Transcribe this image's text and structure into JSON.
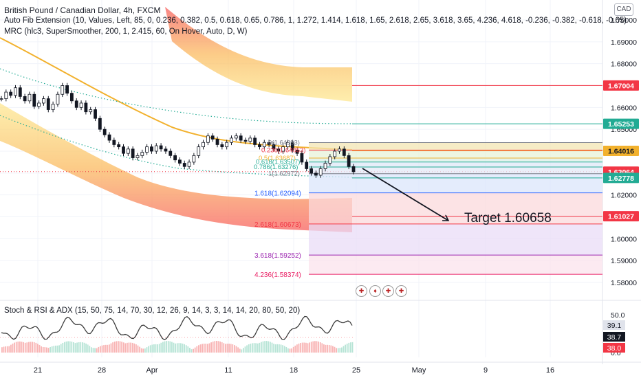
{
  "legend": {
    "title": "British Pound / Canadian Dollar, 4h, FXCM",
    "fib": "Auto Fib Extension (10, Values, Left, 85, 0, 0.236, 0.382, 0.5, 0.618, 0.65, 0.786, 1, 1.272, 1.414, 1.618, 1.65, 2.618, 2.65, 3.618, 3.65, 4.236, 4.618, -0.236, -0.382, -0.618, -0.65)",
    "mrc": "MRC (hlc3, SuperSmoother, 200, 1, 2.415, 60, On Hover, Auto, D, W)",
    "osc": "Stoch & RSI & ADX (15, 50, 75, 14, 70, 30, 12, 26, 9, 14, 3, 3, 14, 14, 20, 80, 50, 20)"
  },
  "currency": "CAD",
  "annotation": "Target 1.60658",
  "colors": {
    "upper_band": "#f9c56a",
    "lower_band": "#f7a07a",
    "mean_line": "#f2b12d",
    "arrow": "#131722",
    "stoch_line": "#3c3c3c"
  },
  "chart_data": {
    "type": "line",
    "title": "British Pound / Canadian Dollar, 4h, FXCM",
    "x_ticks": [
      "21",
      "28",
      "Apr",
      "11",
      "18",
      "25",
      "May",
      "9",
      "16"
    ],
    "y_ticks": [
      "1.70000",
      "1.69000",
      "1.68000",
      "1.67000",
      "1.66000",
      "1.65000",
      "1.64000",
      "1.63000",
      "1.62000",
      "1.61000",
      "1.60000",
      "1.59000",
      "1.58000"
    ],
    "ylim": [
      1.577,
      1.705
    ],
    "osc_ticks": [
      "50.0",
      "0.0"
    ],
    "close_series": [
      1.664,
      1.667,
      1.6655,
      1.669,
      1.665,
      1.663,
      1.666,
      1.6605,
      1.662,
      1.664,
      1.659,
      1.6615,
      1.666,
      1.67,
      1.6665,
      1.663,
      1.66,
      1.662,
      1.658,
      1.659,
      1.655,
      1.65,
      1.6475,
      1.645,
      1.643,
      1.642,
      1.639,
      1.641,
      1.637,
      1.638,
      1.6395,
      1.642,
      1.64,
      1.6425,
      1.641,
      1.64,
      1.638,
      1.636,
      1.6345,
      1.633,
      1.635,
      1.638,
      1.642,
      1.644,
      1.647,
      1.6455,
      1.643,
      1.642,
      1.644,
      1.646,
      1.647,
      1.645,
      1.6445,
      1.646,
      1.643,
      1.642,
      1.644,
      1.643,
      1.641,
      1.64,
      1.642,
      1.644,
      1.6405,
      1.639,
      1.635,
      1.632,
      1.63,
      1.629,
      1.632,
      1.6345,
      1.6375,
      1.64,
      1.641,
      1.638,
      1.633,
      1.6306
    ],
    "fib_levels": [
      {
        "label": "0(1.64393)",
        "value": 1.64393
      },
      {
        "label": "0.236(1.64053)",
        "value": 1.64053
      },
      {
        "label": "0.5(1.63687)",
        "value": 1.63687
      },
      {
        "label": "0.618(1.63507)",
        "value": 1.63507
      },
      {
        "label": "0.786(1.63276)",
        "value": 1.63276
      },
      {
        "label": "1(1.62972)",
        "value": 1.62972
      },
      {
        "label": "1.618(1.62094)",
        "value": 1.62094
      },
      {
        "label": "2.618(1.60673)",
        "value": 1.60673
      },
      {
        "label": "3.618(1.59252)",
        "value": 1.59252
      },
      {
        "label": "4.236(1.58374)",
        "value": 1.58374
      }
    ],
    "price_labels": [
      {
        "text": "1.67004",
        "value": 1.67004,
        "color": "#f23645"
      },
      {
        "text": "1.65253",
        "value": 1.65253,
        "color": "#22ab94"
      },
      {
        "text": "1.64016",
        "value": 1.64016,
        "color": "#f2b12d"
      },
      {
        "text": "1.63064",
        "value": 1.63064,
        "color": "#f23645"
      },
      {
        "text": "1.62778",
        "value": 1.62778,
        "color": "#22ab94"
      },
      {
        "text": "1.61027",
        "value": 1.61027,
        "color": "#f23645"
      }
    ],
    "osc_values": [
      {
        "text": "39.1",
        "value": 39.1,
        "color": "#e0e3eb"
      },
      {
        "text": "38.7",
        "value": 38.7,
        "color": "#131722"
      },
      {
        "text": "38.0",
        "value": 38.0,
        "color": "#f23645"
      }
    ],
    "target": 1.60658
  }
}
